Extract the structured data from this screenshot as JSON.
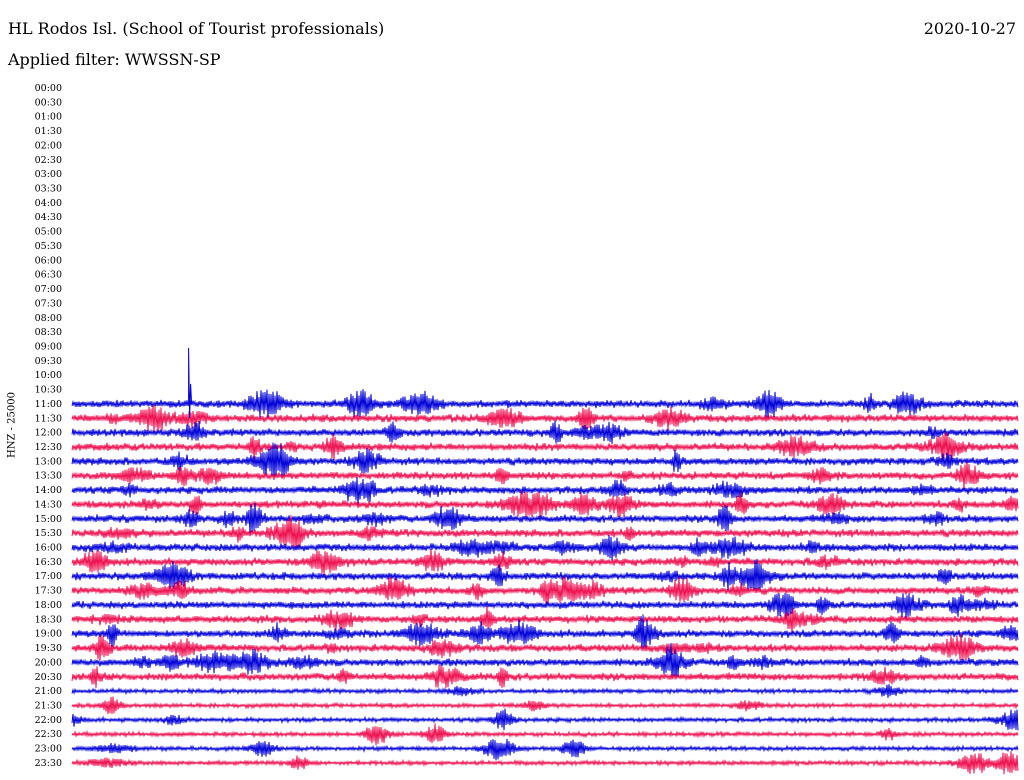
{
  "header": {
    "station": "HL Rodos Isl. (School of Tourist professionals)",
    "date": "2020-10-27",
    "filter": "Applied filter: WWSSN-SP"
  },
  "chart_data": {
    "type": "line",
    "title": "",
    "ylabel": "HNZ - 25000",
    "xlabel": "",
    "row_labels": [
      "00:00",
      "00:30",
      "01:00",
      "01:30",
      "02:00",
      "02:30",
      "03:00",
      "03:30",
      "04:00",
      "04:30",
      "05:00",
      "05:30",
      "06:00",
      "06:30",
      "07:00",
      "07:30",
      "08:00",
      "08:30",
      "09:00",
      "09:30",
      "10:00",
      "10:30",
      "11:00",
      "11:30",
      "12:00",
      "12:30",
      "13:00",
      "13:30",
      "14:00",
      "14:30",
      "15:00",
      "15:30",
      "16:00",
      "16:30",
      "17:00",
      "17:30",
      "18:00",
      "18:30",
      "19:00",
      "19:30",
      "20:00",
      "20:30",
      "21:00",
      "21:30",
      "22:00",
      "22:30",
      "23:00",
      "23:30"
    ],
    "first_trace_row": "11:00",
    "trace_colors": [
      "#0000d8",
      "#ee1050"
    ],
    "notable_event": {
      "row": "11:00",
      "x_fraction": 0.1,
      "height_rows": 3.9
    },
    "grid": false,
    "legend": "none"
  }
}
